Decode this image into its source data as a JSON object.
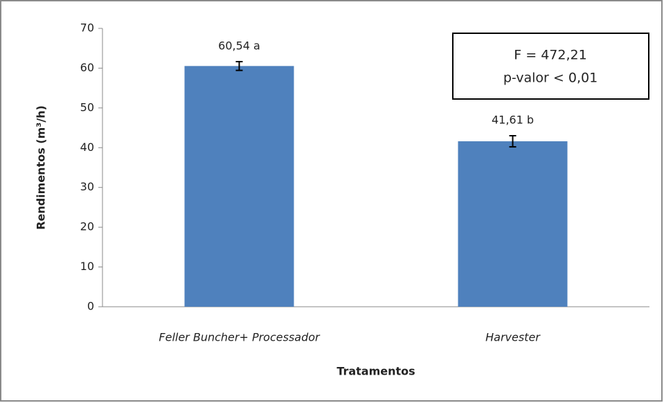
{
  "chart_data": {
    "type": "bar",
    "categories": [
      "Feller Buncher+ Processador",
      "Harvester"
    ],
    "values": [
      60.54,
      41.61
    ],
    "value_labels": [
      "60,54 a",
      "41,61 b"
    ],
    "errors": [
      1.1,
      1.4
    ],
    "color": "#4f81bd",
    "ylim": [
      0,
      70
    ],
    "yticks": [
      0,
      10,
      20,
      30,
      40,
      50,
      60,
      70
    ],
    "y_label": "Rendimentos (m³/h)",
    "x_label": "Tratamentos",
    "annotation": [
      "F = 472,21",
      "p-valor < 0,01"
    ]
  }
}
